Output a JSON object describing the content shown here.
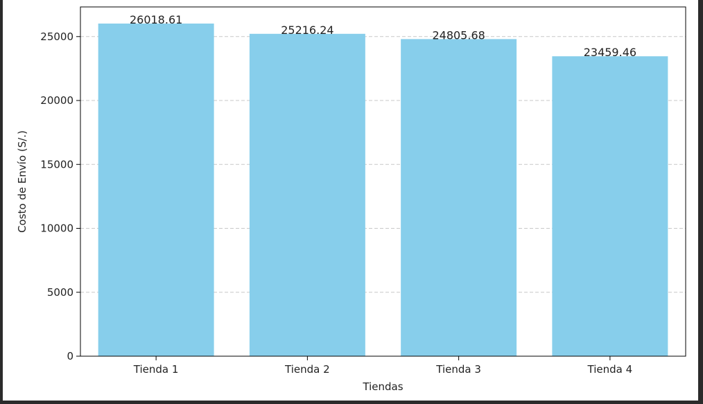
{
  "chart_data": {
    "type": "bar",
    "title": "",
    "xlabel": "Tiendas",
    "ylabel": "Costo de Envío (S/.)",
    "categories": [
      "Tienda 1",
      "Tienda 2",
      "Tienda 3",
      "Tienda 4"
    ],
    "values": [
      26018.61,
      25216.24,
      24805.68,
      23459.46
    ],
    "data_labels": [
      "26018.61",
      "25216.24",
      "24805.68",
      "23459.46"
    ],
    "ylim": [
      0,
      27319
    ],
    "yticks": [
      0,
      5000,
      10000,
      15000,
      20000,
      25000
    ],
    "ytick_labels": [
      "0",
      "5000",
      "10000",
      "15000",
      "20000",
      "25000"
    ],
    "grid": "y-dashed",
    "colors": {
      "bar": "#87ceeb",
      "grid": "#c8c8c8",
      "axis": "#000000"
    }
  }
}
